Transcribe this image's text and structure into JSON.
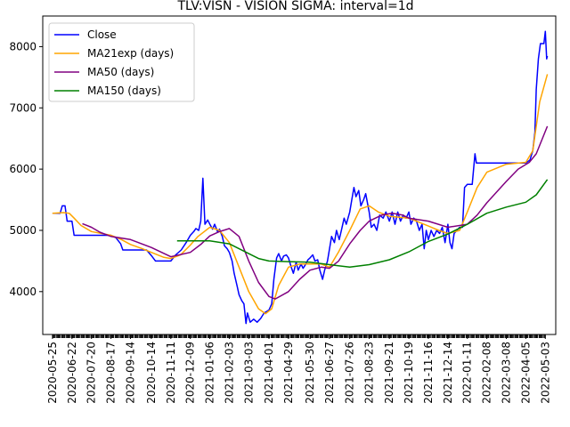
{
  "chart_data": {
    "type": "line",
    "title": "TLV:VISN - VISION SIGMA: interval=1d",
    "xlabel": "",
    "ylabel": "",
    "ylim": [
      3300,
      8500
    ],
    "xlim": [
      "2020-05-11",
      "2022-05-18"
    ],
    "grid": false,
    "legend_position": "top-left",
    "yticks": [
      4000,
      5000,
      6000,
      7000,
      8000
    ],
    "xticks": [
      "2020-05-25",
      "2020-06-22",
      "2020-07-20",
      "2020-08-17",
      "2020-09-14",
      "2020-10-14",
      "2020-11-11",
      "2020-12-09",
      "2021-01-06",
      "2021-02-03",
      "2021-03-03",
      "2021-04-01",
      "2021-04-29",
      "2021-05-30",
      "2021-06-27",
      "2021-07-26",
      "2021-08-23",
      "2021-09-21",
      "2021-10-19",
      "2021-11-16",
      "2021-12-14",
      "2022-01-11",
      "2022-02-08",
      "2022-03-08",
      "2022-04-05",
      "2022-05-03"
    ],
    "series": [
      {
        "name": "Close",
        "color": "#0000ff",
        "points": [
          [
            "2020-05-25",
            5280
          ],
          [
            "2020-06-05",
            5280
          ],
          [
            "2020-06-08",
            5400
          ],
          [
            "2020-06-12",
            5400
          ],
          [
            "2020-06-15",
            5150
          ],
          [
            "2020-06-22",
            5150
          ],
          [
            "2020-06-25",
            4920
          ],
          [
            "2020-07-20",
            4920
          ],
          [
            "2020-08-17",
            4920
          ],
          [
            "2020-08-24",
            4880
          ],
          [
            "2020-08-31",
            4780
          ],
          [
            "2020-09-03",
            4680
          ],
          [
            "2020-09-14",
            4680
          ],
          [
            "2020-10-07",
            4680
          ],
          [
            "2020-10-14",
            4590
          ],
          [
            "2020-10-20",
            4500
          ],
          [
            "2020-11-11",
            4500
          ],
          [
            "2020-11-18",
            4600
          ],
          [
            "2020-11-26",
            4680
          ],
          [
            "2020-12-03",
            4800
          ],
          [
            "2020-12-09",
            4920
          ],
          [
            "2020-12-14",
            4980
          ],
          [
            "2020-12-17",
            5030
          ],
          [
            "2020-12-21",
            5000
          ],
          [
            "2020-12-24",
            5150
          ],
          [
            "2020-12-27",
            5850
          ],
          [
            "2020-12-30",
            5100
          ],
          [
            "2021-01-03",
            5170
          ],
          [
            "2021-01-06",
            5100
          ],
          [
            "2021-01-10",
            5020
          ],
          [
            "2021-01-13",
            5100
          ],
          [
            "2021-01-17",
            4980
          ],
          [
            "2021-01-20",
            5020
          ],
          [
            "2021-01-24",
            4900
          ],
          [
            "2021-01-27",
            4750
          ],
          [
            "2021-01-31",
            4700
          ],
          [
            "2021-02-03",
            4640
          ],
          [
            "2021-02-07",
            4500
          ],
          [
            "2021-02-10",
            4300
          ],
          [
            "2021-02-14",
            4100
          ],
          [
            "2021-02-17",
            3950
          ],
          [
            "2021-02-21",
            3850
          ],
          [
            "2021-02-24",
            3800
          ],
          [
            "2021-02-27",
            3480
          ],
          [
            "2021-03-01",
            3650
          ],
          [
            "2021-03-05",
            3500
          ],
          [
            "2021-03-10",
            3550
          ],
          [
            "2021-03-15",
            3500
          ],
          [
            "2021-03-20",
            3560
          ],
          [
            "2021-03-25",
            3650
          ],
          [
            "2021-04-01",
            3700
          ],
          [
            "2021-04-05",
            3800
          ],
          [
            "2021-04-08",
            4200
          ],
          [
            "2021-04-12",
            4550
          ],
          [
            "2021-04-15",
            4620
          ],
          [
            "2021-04-19",
            4500
          ],
          [
            "2021-04-22",
            4580
          ],
          [
            "2021-04-26",
            4600
          ],
          [
            "2021-04-29",
            4550
          ],
          [
            "2021-05-03",
            4400
          ],
          [
            "2021-05-06",
            4300
          ],
          [
            "2021-05-10",
            4480
          ],
          [
            "2021-05-13",
            4350
          ],
          [
            "2021-05-17",
            4450
          ],
          [
            "2021-05-20",
            4380
          ],
          [
            "2021-05-24",
            4450
          ],
          [
            "2021-05-27",
            4520
          ],
          [
            "2021-05-30",
            4550
          ],
          [
            "2021-06-03",
            4600
          ],
          [
            "2021-06-06",
            4500
          ],
          [
            "2021-06-10",
            4520
          ],
          [
            "2021-06-13",
            4350
          ],
          [
            "2021-06-17",
            4200
          ],
          [
            "2021-06-20",
            4350
          ],
          [
            "2021-06-24",
            4500
          ],
          [
            "2021-06-27",
            4700
          ],
          [
            "2021-06-30",
            4900
          ],
          [
            "2021-07-04",
            4800
          ],
          [
            "2021-07-07",
            5000
          ],
          [
            "2021-07-11",
            4850
          ],
          [
            "2021-07-14",
            5000
          ],
          [
            "2021-07-18",
            5200
          ],
          [
            "2021-07-21",
            5100
          ],
          [
            "2021-07-26",
            5300
          ],
          [
            "2021-07-29",
            5500
          ],
          [
            "2021-08-01",
            5700
          ],
          [
            "2021-08-04",
            5550
          ],
          [
            "2021-08-08",
            5650
          ],
          [
            "2021-08-11",
            5400
          ],
          [
            "2021-08-15",
            5500
          ],
          [
            "2021-08-18",
            5600
          ],
          [
            "2021-08-23",
            5300
          ],
          [
            "2021-08-26",
            5050
          ],
          [
            "2021-08-30",
            5100
          ],
          [
            "2021-09-03",
            5000
          ],
          [
            "2021-09-07",
            5250
          ],
          [
            "2021-09-12",
            5200
          ],
          [
            "2021-09-16",
            5300
          ],
          [
            "2021-09-21",
            5150
          ],
          [
            "2021-09-25",
            5300
          ],
          [
            "2021-09-29",
            5100
          ],
          [
            "2021-10-03",
            5300
          ],
          [
            "2021-10-07",
            5150
          ],
          [
            "2021-10-11",
            5250
          ],
          [
            "2021-10-15",
            5200
          ],
          [
            "2021-10-19",
            5300
          ],
          [
            "2021-10-22",
            5100
          ],
          [
            "2021-10-26",
            5200
          ],
          [
            "2021-10-30",
            5150
          ],
          [
            "2021-11-03",
            5000
          ],
          [
            "2021-11-07",
            5100
          ],
          [
            "2021-11-10",
            4700
          ],
          [
            "2021-11-13",
            5000
          ],
          [
            "2021-11-16",
            4850
          ],
          [
            "2021-11-20",
            5000
          ],
          [
            "2021-11-24",
            4900
          ],
          [
            "2021-11-28",
            5000
          ],
          [
            "2021-12-02",
            4950
          ],
          [
            "2021-12-06",
            5050
          ],
          [
            "2021-12-10",
            4800
          ],
          [
            "2021-12-14",
            5100
          ],
          [
            "2021-12-17",
            4800
          ],
          [
            "2021-12-20",
            4700
          ],
          [
            "2021-12-23",
            4950
          ],
          [
            "2021-12-27",
            5000
          ],
          [
            "2021-12-31",
            5050
          ],
          [
            "2022-01-04",
            5050
          ],
          [
            "2022-01-07",
            5700
          ],
          [
            "2022-01-11",
            5750
          ],
          [
            "2022-01-18",
            5750
          ],
          [
            "2022-01-22",
            6250
          ],
          [
            "2022-01-24",
            6100
          ],
          [
            "2022-02-01",
            6100
          ],
          [
            "2022-02-08",
            6100
          ],
          [
            "2022-03-08",
            6100
          ],
          [
            "2022-04-05",
            6100
          ],
          [
            "2022-04-11",
            6150
          ],
          [
            "2022-04-15",
            6300
          ],
          [
            "2022-04-18",
            6600
          ],
          [
            "2022-04-20",
            7300
          ],
          [
            "2022-04-23",
            7800
          ],
          [
            "2022-04-26",
            8050
          ],
          [
            "2022-05-01",
            8050
          ],
          [
            "2022-05-03",
            8250
          ],
          [
            "2022-05-05",
            7800
          ],
          [
            "2022-05-06",
            7850
          ]
        ]
      },
      {
        "name": "MA21exp (days)",
        "color": "#ffa500",
        "points": [
          [
            "2020-05-25",
            5280
          ],
          [
            "2020-06-10",
            5290
          ],
          [
            "2020-06-18",
            5280
          ],
          [
            "2020-06-25",
            5200
          ],
          [
            "2020-07-05",
            5080
          ],
          [
            "2020-07-20",
            4980
          ],
          [
            "2020-08-17",
            4920
          ],
          [
            "2020-09-01",
            4850
          ],
          [
            "2020-09-14",
            4770
          ],
          [
            "2020-10-01",
            4700
          ],
          [
            "2020-10-14",
            4640
          ],
          [
            "2020-11-01",
            4560
          ],
          [
            "2020-11-11",
            4540
          ],
          [
            "2020-11-25",
            4600
          ],
          [
            "2020-12-09",
            4760
          ],
          [
            "2020-12-20",
            4900
          ],
          [
            "2021-01-06",
            5050
          ],
          [
            "2021-01-20",
            5000
          ],
          [
            "2021-02-03",
            4800
          ],
          [
            "2021-02-17",
            4400
          ],
          [
            "2021-03-03",
            4000
          ],
          [
            "2021-03-17",
            3720
          ],
          [
            "2021-03-27",
            3640
          ],
          [
            "2021-04-05",
            3720
          ],
          [
            "2021-04-15",
            4100
          ],
          [
            "2021-04-29",
            4400
          ],
          [
            "2021-05-15",
            4450
          ],
          [
            "2021-05-30",
            4450
          ],
          [
            "2021-06-15",
            4450
          ],
          [
            "2021-06-27",
            4400
          ],
          [
            "2021-07-10",
            4650
          ],
          [
            "2021-07-26",
            5000
          ],
          [
            "2021-08-10",
            5350
          ],
          [
            "2021-08-23",
            5400
          ],
          [
            "2021-09-05",
            5300
          ],
          [
            "2021-09-21",
            5230
          ],
          [
            "2021-10-19",
            5200
          ],
          [
            "2021-11-16",
            5070
          ],
          [
            "2021-12-01",
            5000
          ],
          [
            "2021-12-14",
            4950
          ],
          [
            "2021-12-31",
            5000
          ],
          [
            "2022-01-11",
            5300
          ],
          [
            "2022-01-25",
            5700
          ],
          [
            "2022-02-08",
            5950
          ],
          [
            "2022-03-08",
            6080
          ],
          [
            "2022-04-05",
            6110
          ],
          [
            "2022-04-15",
            6300
          ],
          [
            "2022-04-25",
            7100
          ],
          [
            "2022-05-06",
            7550
          ]
        ]
      },
      {
        "name": "MA50 (days)",
        "color": "#800080",
        "points": [
          [
            "2020-07-07",
            5110
          ],
          [
            "2020-07-20",
            5050
          ],
          [
            "2020-08-01",
            4970
          ],
          [
            "2020-08-17",
            4900
          ],
          [
            "2020-09-14",
            4850
          ],
          [
            "2020-10-14",
            4720
          ],
          [
            "2020-11-11",
            4570
          ],
          [
            "2020-12-09",
            4640
          ],
          [
            "2020-12-25",
            4780
          ],
          [
            "2021-01-06",
            4910
          ],
          [
            "2021-01-20",
            4980
          ],
          [
            "2021-02-03",
            5030
          ],
          [
            "2021-02-17",
            4900
          ],
          [
            "2021-03-03",
            4500
          ],
          [
            "2021-03-17",
            4150
          ],
          [
            "2021-04-01",
            3920
          ],
          [
            "2021-04-10",
            3880
          ],
          [
            "2021-04-29",
            4000
          ],
          [
            "2021-05-15",
            4200
          ],
          [
            "2021-05-30",
            4350
          ],
          [
            "2021-06-15",
            4400
          ],
          [
            "2021-06-27",
            4380
          ],
          [
            "2021-07-10",
            4500
          ],
          [
            "2021-07-26",
            4780
          ],
          [
            "2021-08-10",
            5000
          ],
          [
            "2021-08-23",
            5150
          ],
          [
            "2021-09-10",
            5250
          ],
          [
            "2021-09-25",
            5280
          ],
          [
            "2021-10-10",
            5250
          ],
          [
            "2021-10-19",
            5200
          ],
          [
            "2021-11-16",
            5150
          ],
          [
            "2021-12-14",
            5050
          ],
          [
            "2022-01-11",
            5100
          ],
          [
            "2022-01-25",
            5250
          ],
          [
            "2022-02-08",
            5450
          ],
          [
            "2022-03-08",
            5800
          ],
          [
            "2022-03-25",
            6000
          ],
          [
            "2022-04-10",
            6110
          ],
          [
            "2022-04-20",
            6250
          ],
          [
            "2022-05-06",
            6700
          ]
        ]
      },
      {
        "name": "MA150 (days)",
        "color": "#008000",
        "points": [
          [
            "2020-11-20",
            4830
          ],
          [
            "2020-12-09",
            4830
          ],
          [
            "2021-01-06",
            4830
          ],
          [
            "2021-02-03",
            4780
          ],
          [
            "2021-02-17",
            4700
          ],
          [
            "2021-03-03",
            4620
          ],
          [
            "2021-03-17",
            4540
          ],
          [
            "2021-04-01",
            4500
          ],
          [
            "2021-04-29",
            4490
          ],
          [
            "2021-05-30",
            4480
          ],
          [
            "2021-06-27",
            4440
          ],
          [
            "2021-07-26",
            4400
          ],
          [
            "2021-08-23",
            4440
          ],
          [
            "2021-09-21",
            4520
          ],
          [
            "2021-10-19",
            4650
          ],
          [
            "2021-11-16",
            4820
          ],
          [
            "2021-12-14",
            4940
          ],
          [
            "2022-01-11",
            5100
          ],
          [
            "2022-02-08",
            5280
          ],
          [
            "2022-03-08",
            5380
          ],
          [
            "2022-04-05",
            5460
          ],
          [
            "2022-04-20",
            5580
          ],
          [
            "2022-05-06",
            5830
          ]
        ]
      }
    ]
  }
}
